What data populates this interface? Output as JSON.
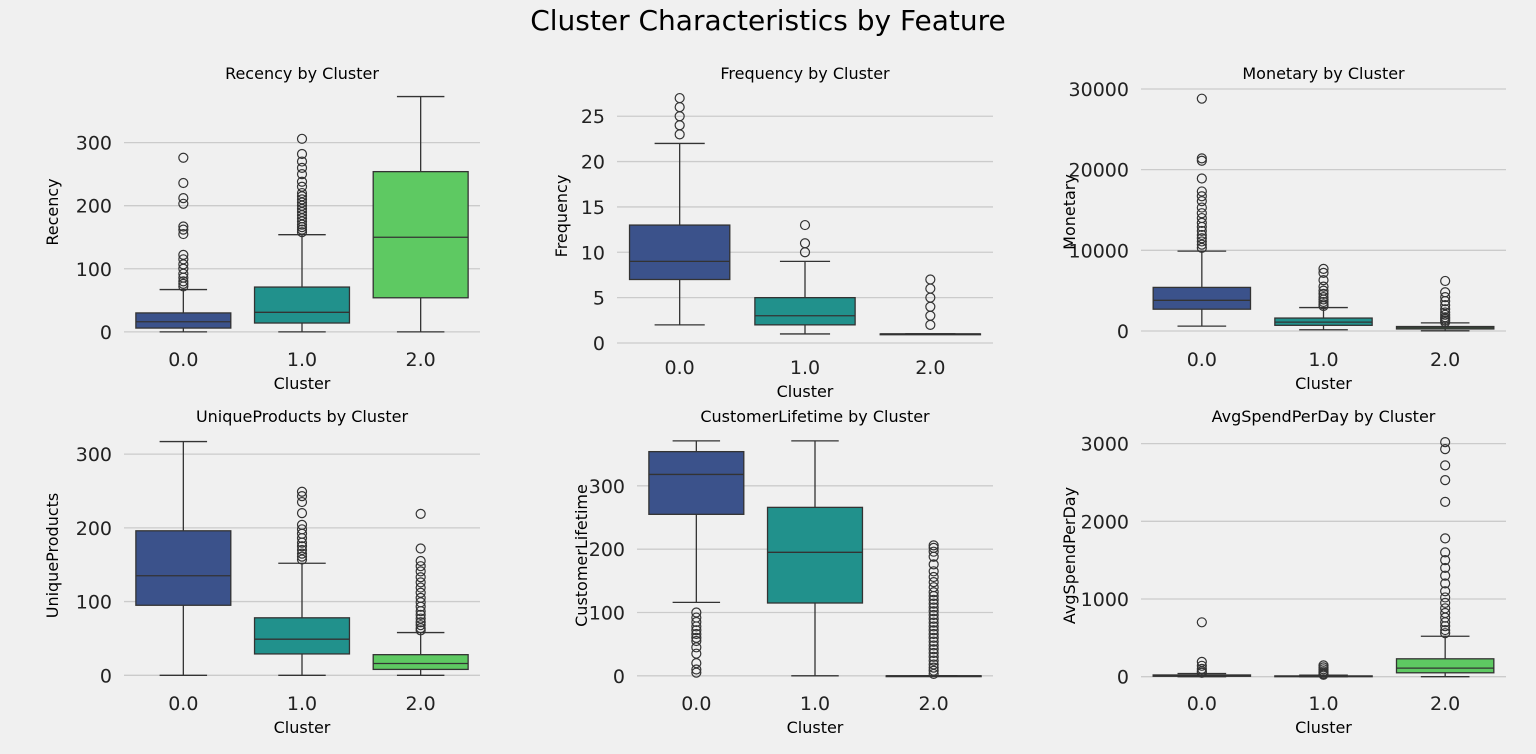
{
  "figure": {
    "title": "Cluster Characteristics by Feature"
  },
  "colors": {
    "cluster_0": "#3b528b",
    "cluster_1": "#21918c",
    "cluster_2": "#5ec962",
    "grid": "#cbcbcb",
    "line": "#333333",
    "background": "#f0f0f0"
  },
  "chart_data": [
    {
      "type": "box",
      "title": "Recency by Cluster",
      "xlabel": "Cluster",
      "ylabel": "Recency",
      "categories": [
        "0.0",
        "1.0",
        "2.0"
      ],
      "ylim": [
        -5,
        385
      ],
      "yticks": [
        0,
        100,
        200,
        300
      ],
      "grid": true,
      "boxes": [
        {
          "category": "0.0",
          "whislo": 0,
          "q1": 6,
          "median": 16,
          "q3": 30,
          "whishi": 67,
          "fliers": [
            72,
            76,
            80,
            86,
            92,
            100,
            107,
            115,
            122,
            155,
            162,
            167,
            203,
            212,
            236,
            276
          ]
        },
        {
          "category": "1.0",
          "whislo": 0,
          "q1": 14,
          "median": 31,
          "q3": 71,
          "whishi": 154,
          "fliers": [
            158,
            162,
            166,
            170,
            175,
            180,
            185,
            190,
            195,
            200,
            205,
            210,
            215,
            220,
            230,
            238,
            250,
            260,
            270,
            282,
            306
          ]
        },
        {
          "category": "2.0",
          "whislo": 0,
          "q1": 54,
          "median": 150,
          "q3": 254,
          "whishi": 373,
          "fliers": []
        }
      ]
    },
    {
      "type": "box",
      "title": "Frequency by Cluster",
      "xlabel": "Cluster",
      "ylabel": "Frequency",
      "categories": [
        "0.0",
        "1.0",
        "2.0"
      ],
      "ylim": [
        0,
        28
      ],
      "yticks": [
        0,
        5,
        10,
        15,
        20,
        25
      ],
      "grid": true,
      "boxes": [
        {
          "category": "0.0",
          "whislo": 2,
          "q1": 7,
          "median": 9,
          "q3": 13,
          "whishi": 22,
          "fliers": [
            23,
            24,
            25,
            26,
            27
          ]
        },
        {
          "category": "1.0",
          "whislo": 1,
          "q1": 2,
          "median": 3,
          "q3": 5,
          "whishi": 9,
          "fliers": [
            10,
            11,
            13
          ]
        },
        {
          "category": "2.0",
          "whislo": 1,
          "q1": 1,
          "median": 1,
          "q3": 1,
          "whishi": 1,
          "fliers": [
            2,
            3,
            4,
            5,
            6,
            7
          ]
        }
      ]
    },
    {
      "type": "box",
      "title": "Monetary by Cluster",
      "xlabel": "Cluster",
      "ylabel": "Monetary",
      "categories": [
        "0.0",
        "1.0",
        "2.0"
      ],
      "ylim": [
        -500,
        30000
      ],
      "yticks": [
        0,
        10000,
        20000,
        30000
      ],
      "grid": true,
      "boxes": [
        {
          "category": "0.0",
          "whislo": 600,
          "q1": 2700,
          "median": 3800,
          "q3": 5400,
          "whishi": 9900,
          "fliers": [
            10300,
            10700,
            11100,
            11500,
            11900,
            12400,
            12900,
            13400,
            14000,
            14600,
            15300,
            16100,
            16700,
            17300,
            18900,
            21100,
            21400,
            28800
          ]
        },
        {
          "category": "1.0",
          "whislo": 150,
          "q1": 700,
          "median": 1100,
          "q3": 1600,
          "whishi": 2900,
          "fliers": [
            3100,
            3300,
            3600,
            3900,
            4200,
            4600,
            5000,
            5500,
            6300,
            7200,
            7700
          ]
        },
        {
          "category": "2.0",
          "whislo": 20,
          "q1": 250,
          "median": 400,
          "q3": 550,
          "whishi": 1000,
          "fliers": [
            1100,
            1300,
            1500,
            1700,
            2000,
            2300,
            2700,
            3200,
            3700,
            4200,
            4800,
            6200
          ]
        }
      ]
    },
    {
      "type": "box",
      "title": "UniqueProducts by Cluster",
      "xlabel": "Cluster",
      "ylabel": "UniqueProducts",
      "categories": [
        "0.0",
        "1.0",
        "2.0"
      ],
      "ylim": [
        -5,
        330
      ],
      "yticks": [
        0,
        100,
        200,
        300
      ],
      "grid": true,
      "boxes": [
        {
          "category": "0.0",
          "whislo": 0,
          "q1": 95,
          "median": 135,
          "q3": 196,
          "whishi": 317,
          "fliers": []
        },
        {
          "category": "1.0",
          "whislo": 0,
          "q1": 29,
          "median": 49,
          "q3": 78,
          "whishi": 152,
          "fliers": [
            157,
            161,
            165,
            170,
            175,
            180,
            186,
            192,
            198,
            204,
            220,
            235,
            243,
            249
          ]
        },
        {
          "category": "2.0",
          "whislo": 0,
          "q1": 8,
          "median": 16,
          "q3": 28,
          "whishi": 58,
          "fliers": [
            61,
            64,
            68,
            72,
            77,
            82,
            87,
            93,
            99,
            105,
            112,
            119,
            126,
            133,
            141,
            148,
            155,
            172,
            219
          ]
        }
      ]
    },
    {
      "type": "box",
      "title": "CustomerLifetime by Cluster",
      "xlabel": "Cluster",
      "ylabel": "CustomerLifetime",
      "categories": [
        "0.0",
        "1.0",
        "2.0"
      ],
      "ylim": [
        -5,
        385
      ],
      "yticks": [
        0,
        100,
        200,
        300
      ],
      "grid": true,
      "boxes": [
        {
          "category": "0.0",
          "whislo": 116,
          "q1": 255,
          "median": 318,
          "q3": 354,
          "whishi": 371,
          "fliers": [
            5,
            10,
            20,
            35,
            45,
            55,
            60,
            66,
            72,
            78,
            85,
            92,
            100
          ]
        },
        {
          "category": "1.0",
          "whislo": 0,
          "q1": 115,
          "median": 195,
          "q3": 266,
          "whishi": 371,
          "fliers": []
        },
        {
          "category": "2.0",
          "whislo": 0,
          "q1": 0,
          "median": 0,
          "q3": 0,
          "whishi": 0,
          "fliers": [
            3,
            8,
            13,
            18,
            24,
            30,
            36,
            42,
            48,
            54,
            60,
            66,
            72,
            78,
            84,
            90,
            96,
            102,
            108,
            114,
            120,
            126,
            132,
            140,
            148,
            156,
            165,
            176,
            188,
            196,
            202,
            206
          ]
        }
      ]
    },
    {
      "type": "box",
      "title": "AvgSpendPerDay by Cluster",
      "xlabel": "Cluster",
      "ylabel": "AvgSpendPerDay",
      "categories": [
        "0.0",
        "1.0",
        "2.0"
      ],
      "ylim": [
        -30,
        3150
      ],
      "yticks": [
        0,
        1000,
        2000,
        3000
      ],
      "grid": true,
      "boxes": [
        {
          "category": "0.0",
          "whislo": 0,
          "q1": 5,
          "median": 12,
          "q3": 22,
          "whishi": 40,
          "fliers": [
            50,
            70,
            100,
            140,
            190,
            700
          ]
        },
        {
          "category": "1.0",
          "whislo": 0,
          "q1": 3,
          "median": 6,
          "q3": 10,
          "whishi": 20,
          "fliers": [
            25,
            35,
            50,
            70,
            95,
            120,
            145
          ]
        },
        {
          "category": "2.0",
          "whislo": 0,
          "q1": 50,
          "median": 110,
          "q3": 230,
          "whishi": 520,
          "fliers": [
            560,
            600,
            650,
            700,
            760,
            820,
            880,
            950,
            1020,
            1100,
            1200,
            1300,
            1400,
            1500,
            1600,
            1780,
            2250,
            2530,
            2720,
            2930,
            3020
          ]
        }
      ]
    }
  ]
}
